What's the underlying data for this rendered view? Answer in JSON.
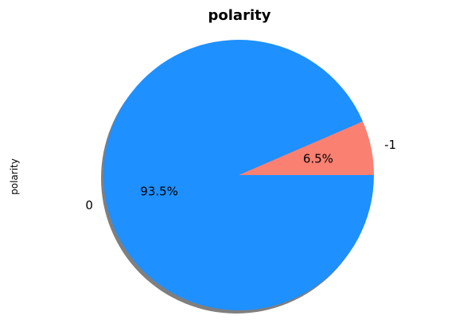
{
  "chart_data": {
    "type": "pie",
    "title": "polarity",
    "ylabel": "polarity",
    "slices": [
      {
        "label": "0",
        "value": 93.5,
        "pct_label": "93.5%",
        "color": "#1E90FF"
      },
      {
        "label": "-1",
        "value": 6.5,
        "pct_label": "6.5%",
        "color": "#FA8072"
      }
    ],
    "start_angle_deg": 0,
    "direction": "counterclockwise",
    "shadow": true,
    "shadow_color": "#7f7f7f"
  }
}
